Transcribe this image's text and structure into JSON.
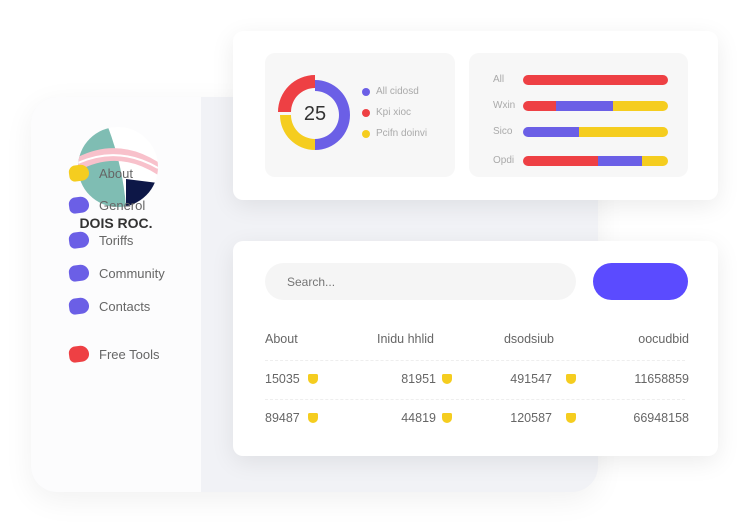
{
  "sidebar": {
    "brand": "DOIS ROC.",
    "items": [
      {
        "label": "About",
        "color": "#f5cd1f"
      },
      {
        "label": "Generol",
        "color": "#6b5fe6"
      },
      {
        "label": "Toriffs",
        "color": "#6b5fe6"
      },
      {
        "label": "Community",
        "color": "#6b5fe6"
      },
      {
        "label": "Contacts",
        "color": "#6b5fe6"
      },
      {
        "label": "Free Tools",
        "color": "#ee4044"
      }
    ]
  },
  "donut": {
    "value": "25",
    "segments": [
      {
        "label": "All cidosd",
        "color": "#6b5fe6",
        "fraction": 0.5
      },
      {
        "label": "Kpi xioc",
        "color": "#ee4044",
        "fraction": 0.25
      },
      {
        "label": "Pcifn doinvi",
        "color": "#f5cd1f",
        "fraction": 0.25
      }
    ]
  },
  "bars": [
    {
      "label": "All",
      "segments": [
        {
          "color": "#ee4044",
          "fraction": 1
        }
      ]
    },
    {
      "label": "Wxin",
      "segments": [
        {
          "color": "#ee4044",
          "fraction": 0.23
        },
        {
          "color": "#6b5fe6",
          "fraction": 0.39
        },
        {
          "color": "#f5cd1f",
          "fraction": 0.38
        }
      ]
    },
    {
      "label": "Sico",
      "segments": [
        {
          "color": "#6b5fe6",
          "fraction": 0.385
        },
        {
          "color": "#f5cd1f",
          "fraction": 0.615
        }
      ]
    },
    {
      "label": "Opdi",
      "segments": [
        {
          "color": "#ee4044",
          "fraction": 0.52
        },
        {
          "color": "#6b5fe6",
          "fraction": 0.3
        },
        {
          "color": "#f5cd1f",
          "fraction": 0.18
        }
      ]
    }
  ],
  "search": {
    "placeholder": "Search..."
  },
  "button": {
    "color": "#5b4bff"
  },
  "table": {
    "headers": [
      "About",
      "Inidu hhlid",
      "dsodsiub",
      "oocudbid"
    ],
    "rows": [
      [
        "15035",
        "81951",
        "491547",
        "11658859"
      ],
      [
        "89487",
        "44819",
        "120587",
        "66948158"
      ]
    ]
  }
}
